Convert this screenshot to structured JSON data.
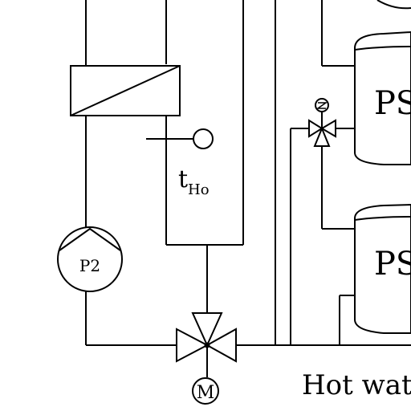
{
  "labels": {
    "tank_top": "PS",
    "tank_bottom": "PS",
    "pump": "P2",
    "temp_sensor_main": "t",
    "temp_sensor_sub": "Ho",
    "motor": "M",
    "hot_water": "Hot wat"
  }
}
